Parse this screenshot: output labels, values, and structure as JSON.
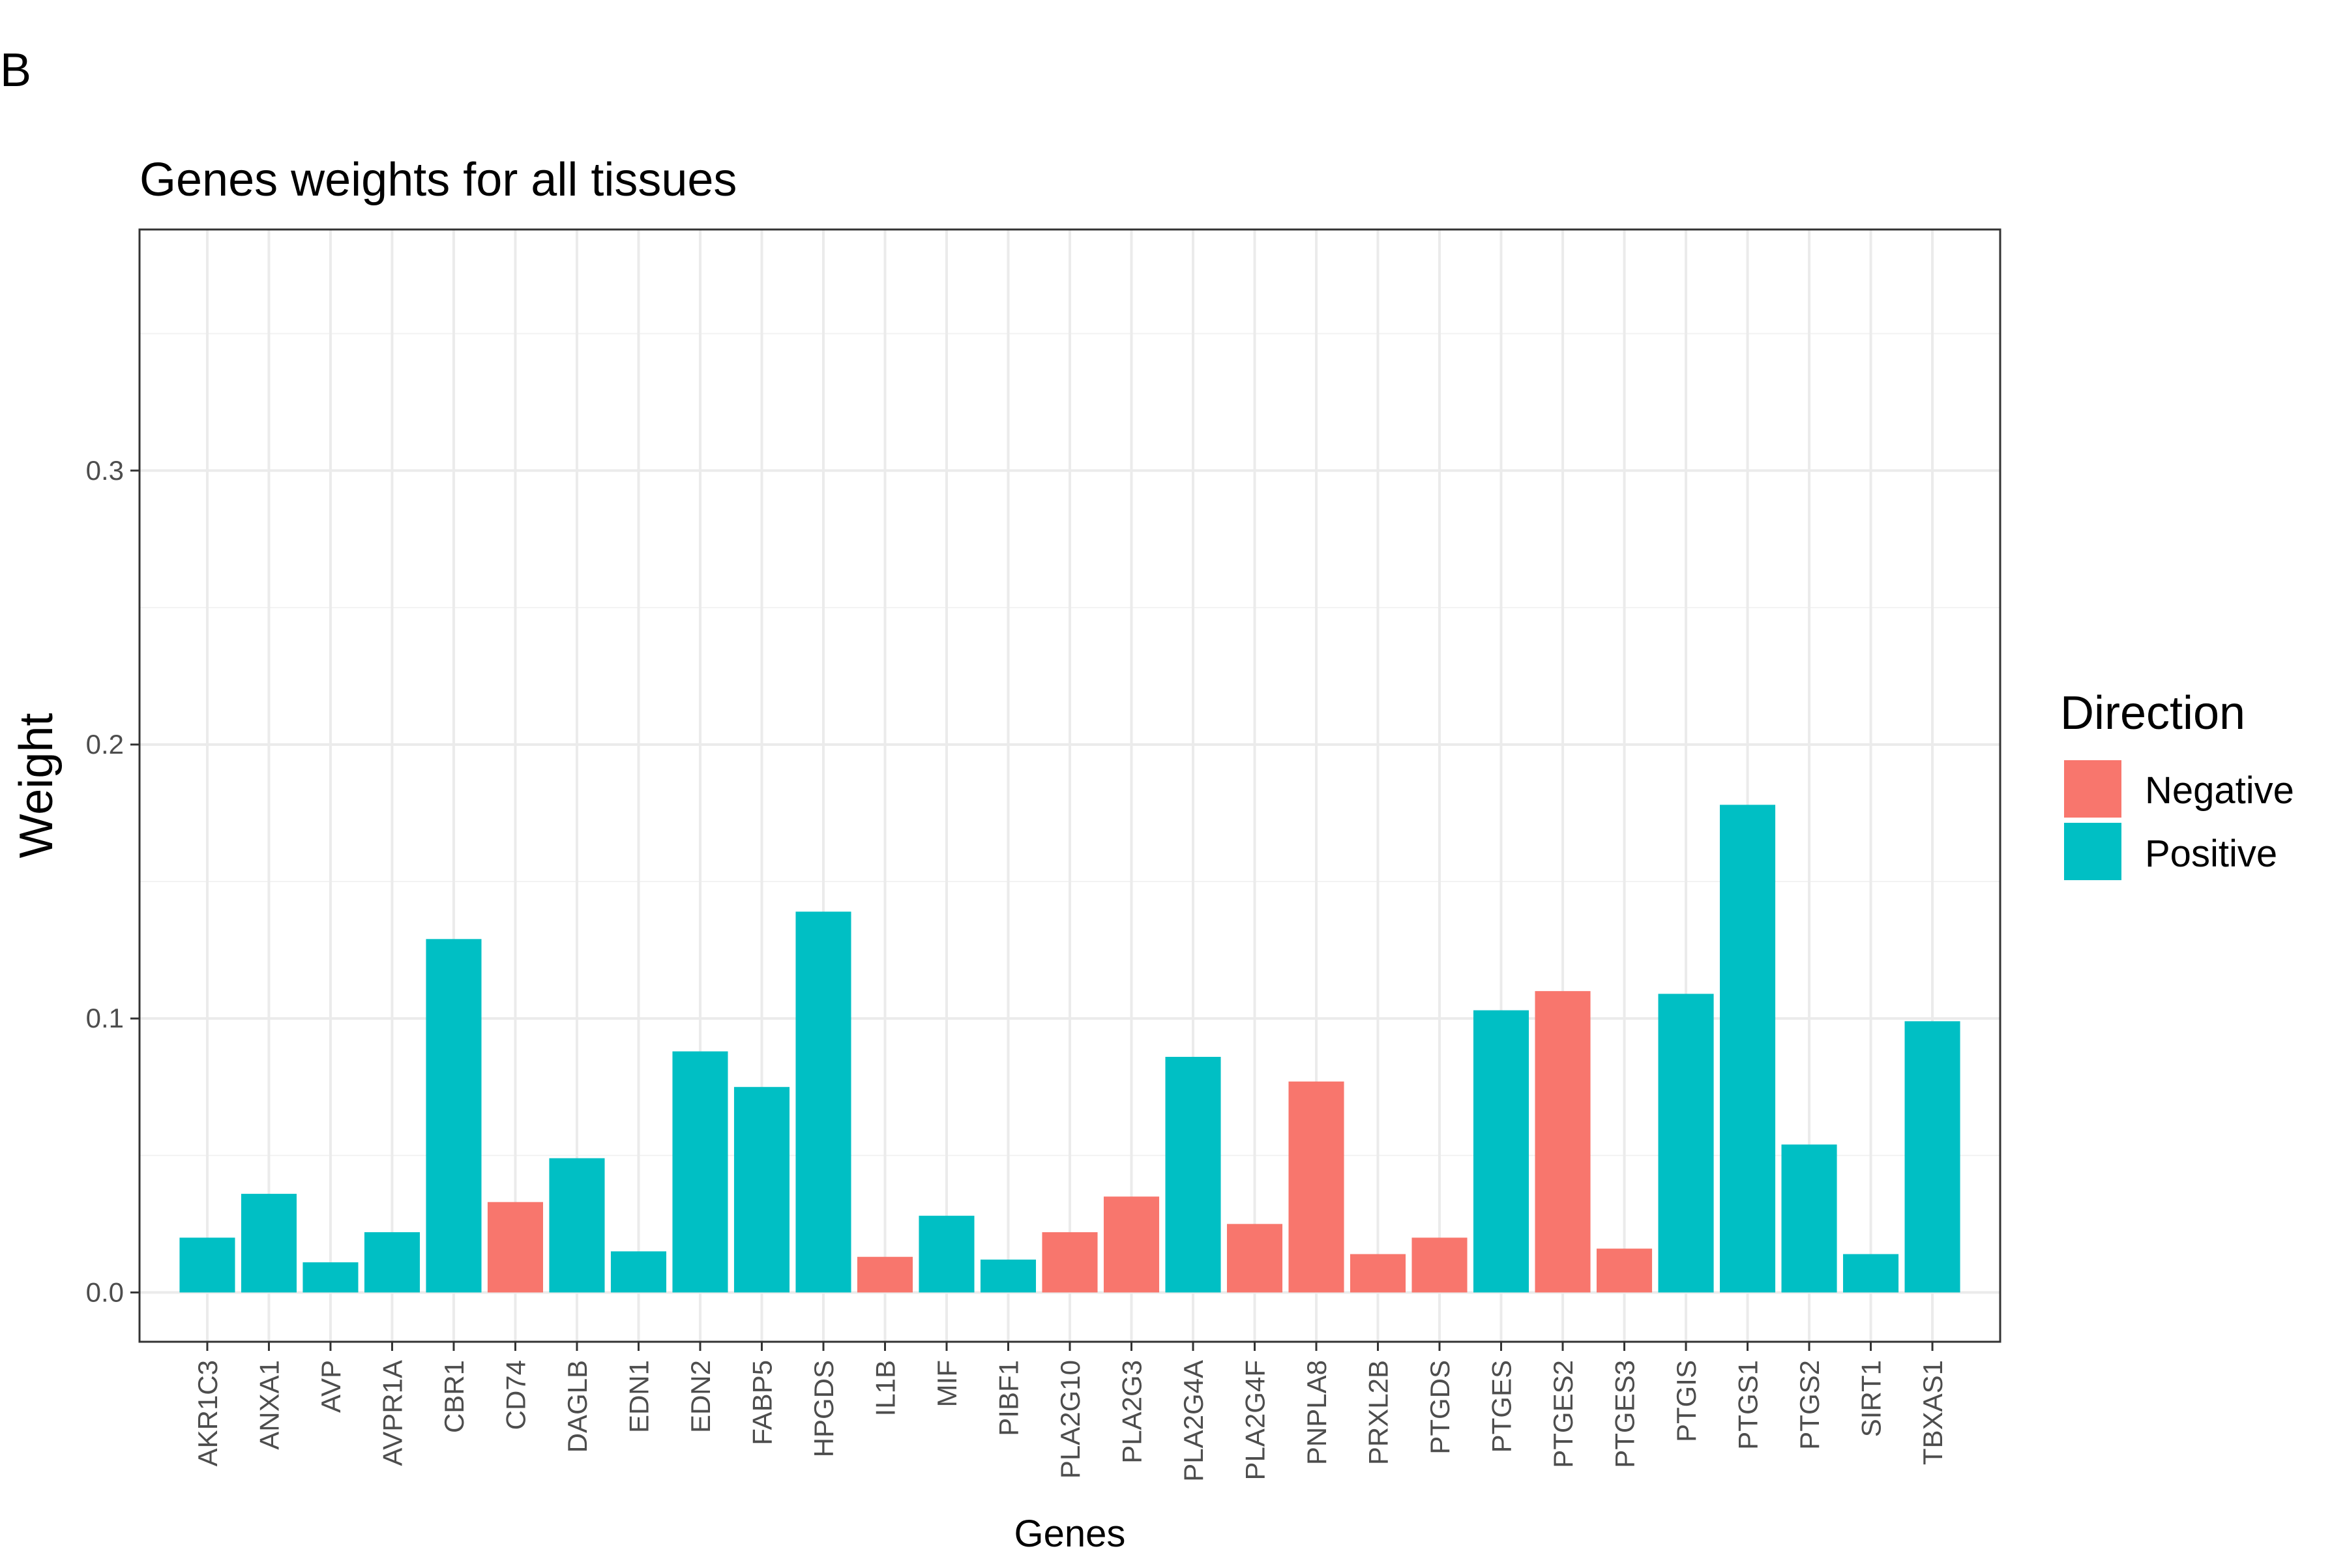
{
  "panel_label": "B",
  "chart_data": {
    "type": "bar",
    "title": "Genes weights for all tissues",
    "xlabel": "Genes",
    "ylabel": "Weight",
    "ylim": [
      -0.018,
      0.388
    ],
    "yticks": [
      "0.0",
      "0.1",
      "0.2",
      "0.3"
    ],
    "ytick_values": [
      0.0,
      0.1,
      0.2,
      0.3
    ],
    "grid": true,
    "legend": {
      "title": "Direction",
      "position": "right",
      "entries": [
        {
          "label": "Negative",
          "color": "#F8766D"
        },
        {
          "label": "Positive",
          "color": "#00BFC4"
        }
      ]
    },
    "categories": [
      "AKR1C3",
      "ANXA1",
      "AVP",
      "AVPR1A",
      "CBR1",
      "CD74",
      "DAGLB",
      "EDN1",
      "EDN2",
      "FABP5",
      "HPGDS",
      "IL1B",
      "MIF",
      "PIBF1",
      "PLA2G10",
      "PLA2G3",
      "PLA2G4A",
      "PLA2G4F",
      "PNPLA8",
      "PRXL2B",
      "PTGDS",
      "PTGES",
      "PTGES2",
      "PTGES3",
      "PTGIS",
      "PTGS1",
      "PTGS2",
      "SIRT1",
      "TBXAS1"
    ],
    "values": [
      0.02,
      0.036,
      0.011,
      0.022,
      0.129,
      0.033,
      0.049,
      0.015,
      0.088,
      0.075,
      0.139,
      0.013,
      0.028,
      0.012,
      0.022,
      0.035,
      0.086,
      0.025,
      0.077,
      0.014,
      0.02,
      0.103,
      0.11,
      0.016,
      0.109,
      0.178,
      0.054,
      0.014,
      0.099
    ],
    "direction": [
      "Positive",
      "Positive",
      "Positive",
      "Positive",
      "Positive",
      "Negative",
      "Positive",
      "Positive",
      "Positive",
      "Positive",
      "Positive",
      "Negative",
      "Positive",
      "Positive",
      "Negative",
      "Negative",
      "Positive",
      "Negative",
      "Negative",
      "Negative",
      "Negative",
      "Positive",
      "Negative",
      "Negative",
      "Positive",
      "Positive",
      "Positive",
      "Positive",
      "Positive"
    ]
  }
}
